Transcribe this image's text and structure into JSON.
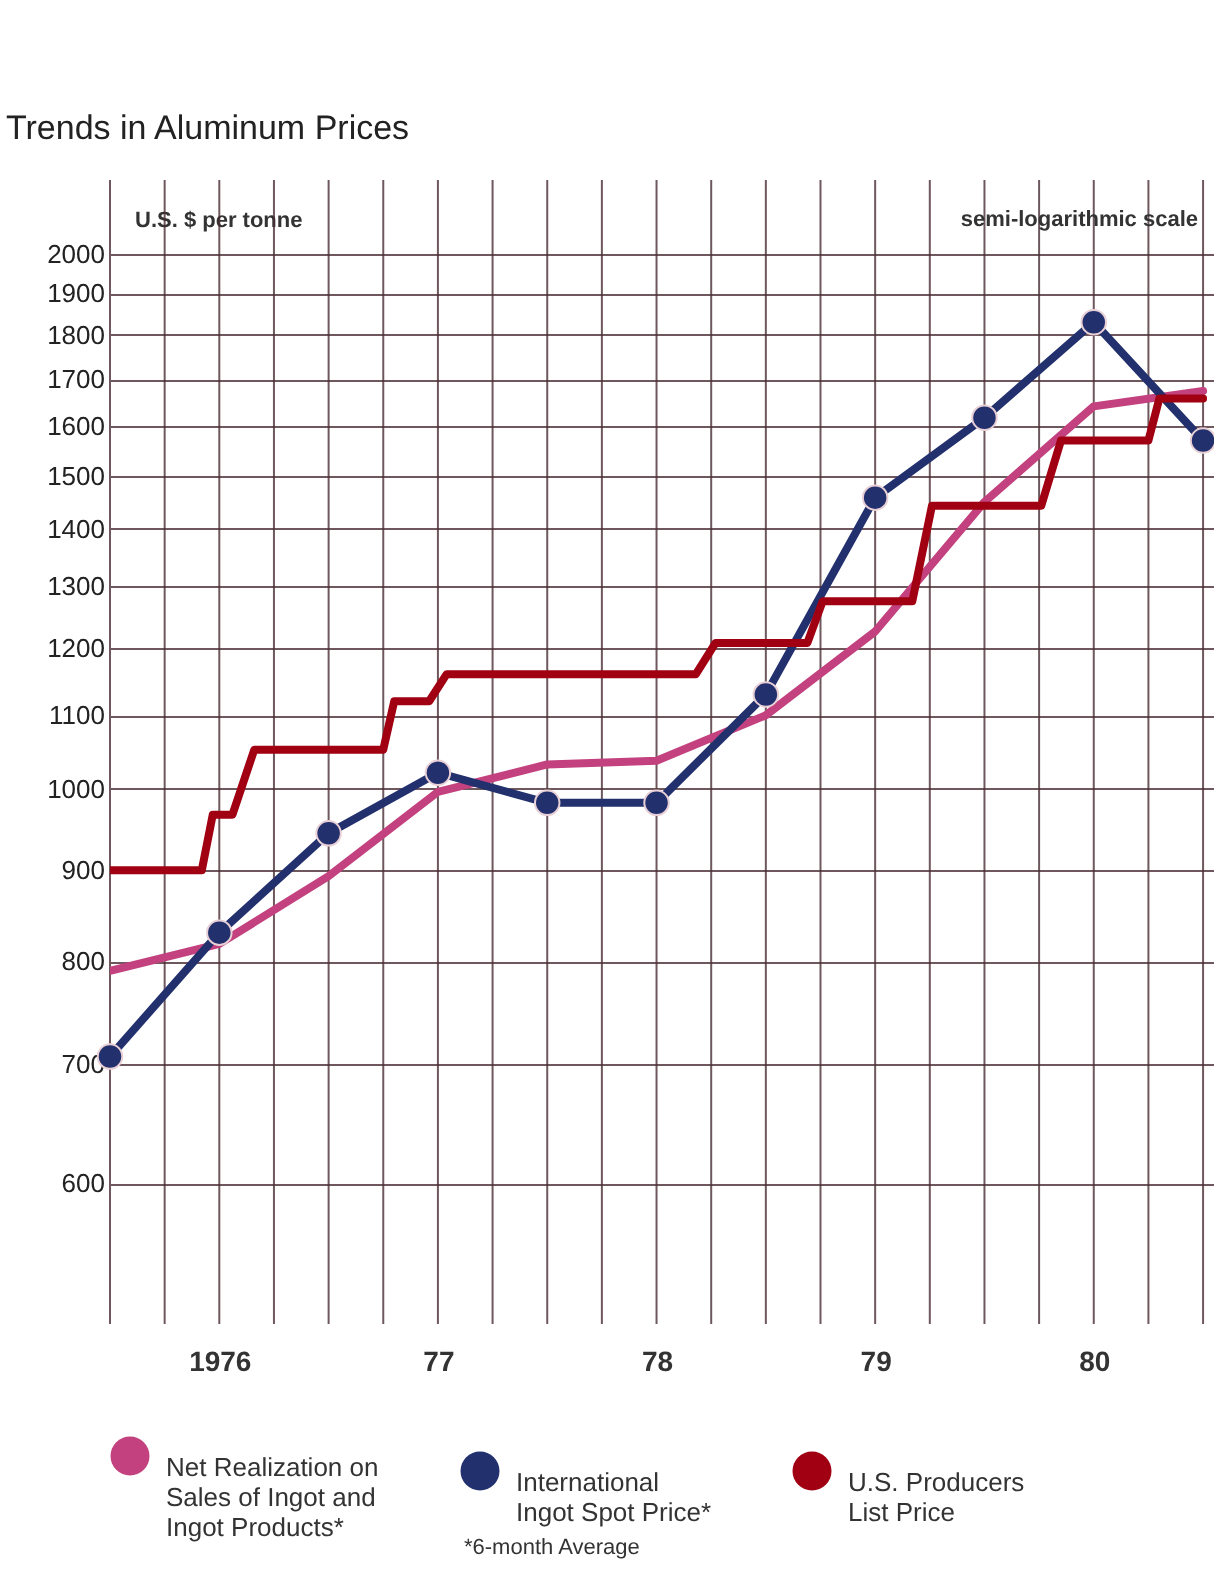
{
  "chart_data": {
    "type": "line",
    "title": "Trends in Aluminum Prices",
    "ylabel": "U.S. $ per tonne",
    "annotations": [
      "semi-logarithmic scale",
      "*6-month Average"
    ],
    "log": "y",
    "grid": true,
    "legend": "bottom",
    "line_style": "solid",
    "xlim": [
      1975.5,
      1980.55
    ],
    "xticks": [
      {
        "value": 1975.5,
        "label": null
      },
      {
        "value": 1975.75,
        "label": null
      },
      {
        "value": 1976,
        "label": "1976"
      },
      {
        "value": 1976.25,
        "label": null
      },
      {
        "value": 1976.5,
        "label": null
      },
      {
        "value": 1976.75,
        "label": null
      },
      {
        "value": 1977,
        "label": "77"
      },
      {
        "value": 1977.25,
        "label": null
      },
      {
        "value": 1977.5,
        "label": null
      },
      {
        "value": 1977.75,
        "label": null
      },
      {
        "value": 1978,
        "label": "78"
      },
      {
        "value": 1978.25,
        "label": null
      },
      {
        "value": 1978.5,
        "label": null
      },
      {
        "value": 1978.75,
        "label": null
      },
      {
        "value": 1979,
        "label": "79"
      },
      {
        "value": 1979.25,
        "label": null
      },
      {
        "value": 1979.5,
        "label": null
      },
      {
        "value": 1979.75,
        "label": null
      },
      {
        "value": 1980,
        "label": "80"
      },
      {
        "value": 1980.25,
        "label": null
      },
      {
        "value": 1980.5,
        "label": null
      }
    ],
    "ylim": [
      500,
      2200
    ],
    "yticks": [
      600,
      700,
      800,
      900,
      1000,
      1100,
      1200,
      1300,
      1400,
      1500,
      1600,
      1700,
      1800,
      1900,
      2000
    ],
    "series": [
      {
        "name": "Net Realization on Sales of Ingot and Ingot Products*",
        "color": "#c2417e",
        "x": [
          1975.5,
          1976,
          1976.5,
          1977,
          1977.5,
          1978,
          1978.5,
          1979,
          1979.5,
          1980,
          1980.5
        ],
        "values": [
          790,
          818,
          893,
          996,
          1032,
          1037,
          1100,
          1226,
          1450,
          1641,
          1674
        ]
      },
      {
        "name": "International Ingot Spot Price*",
        "color": "#23306e",
        "marker": "circle",
        "x": [
          1975.5,
          1976,
          1976.5,
          1977,
          1977.5,
          1978,
          1978.5,
          1979,
          1979.5,
          1980,
          1980.5
        ],
        "values": [
          707,
          830,
          944,
          1021,
          982,
          982,
          1130,
          1458,
          1617,
          1830,
          1570
        ]
      },
      {
        "name": "U.S. Producers List Price",
        "color": "#a00012",
        "x": [
          1975.5,
          1975.92,
          1975.97,
          1976.06,
          1976.16,
          1976.75,
          1976.8,
          1976.96,
          1977.04,
          1978.18,
          1978.27,
          1978.69,
          1978.76,
          1979.17,
          1979.26,
          1979.76,
          1979.85,
          1980.25,
          1980.3,
          1980.5
        ],
        "values": [
          900,
          900,
          967,
          967,
          1052,
          1052,
          1120,
          1120,
          1160,
          1160,
          1208,
          1208,
          1275,
          1275,
          1443,
          1443,
          1570,
          1570,
          1658,
          1658
        ]
      }
    ]
  }
}
